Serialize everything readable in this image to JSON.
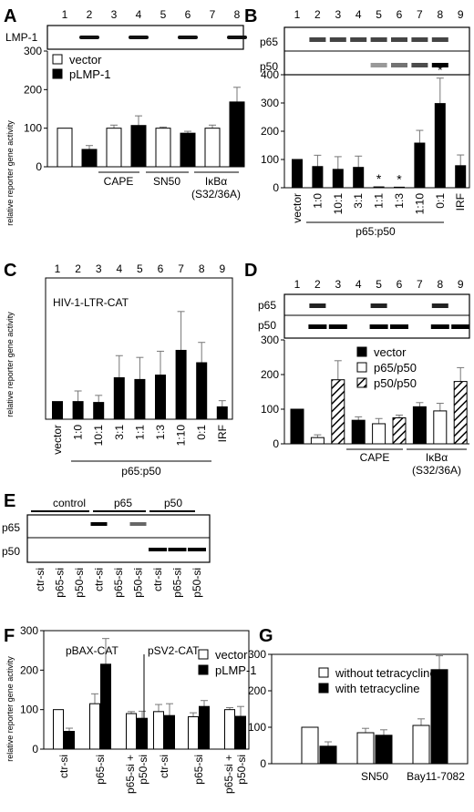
{
  "panels": {
    "A": {
      "letter": "A",
      "lanes": [
        "1",
        "2",
        "3",
        "4",
        "5",
        "6",
        "7",
        "8"
      ],
      "blot_label": "LMP-1",
      "blot_present": [
        false,
        true,
        false,
        true,
        false,
        true,
        false,
        true
      ],
      "legend": [
        "vector",
        "pLMP-1"
      ],
      "groups": [
        "CAPE",
        "SN50",
        "IκBα"
      ],
      "group_sub": "(S32/36A)",
      "chart_data": {
        "type": "bar",
        "ylabel": "relative reporter gene activity",
        "ylim": [
          0,
          300
        ],
        "yticks": [
          0,
          100,
          200,
          300
        ],
        "series": [
          {
            "name": "vector",
            "color": "#ffffff",
            "values": [
              100,
              null,
              100,
              null,
              100,
              null,
              100,
              null
            ],
            "err": [
              0,
              null,
              8,
              null,
              3,
              null,
              8,
              null
            ]
          },
          {
            "name": "pLMP-1",
            "color": "#000000",
            "values": [
              null,
              45,
              null,
              107,
              null,
              87,
              null,
              168
            ],
            "err": [
              null,
              10,
              null,
              25,
              null,
              5,
              null,
              38
            ]
          }
        ]
      }
    },
    "B": {
      "letter": "B",
      "lanes": [
        "1",
        "2",
        "3",
        "4",
        "5",
        "6",
        "7",
        "8",
        "9"
      ],
      "blot_labels": [
        "p65",
        "p50"
      ],
      "x_labels": [
        "vector",
        "1:0",
        "10:1",
        "3:1",
        "1:1",
        "1:3",
        "1:10",
        "0:1",
        "IRF"
      ],
      "group_label": "p65:p50",
      "stars": [
        "*",
        "*",
        "*"
      ],
      "chart_data": {
        "type": "bar",
        "ylim": [
          0,
          400
        ],
        "yticks": [
          0,
          100,
          200,
          300,
          400
        ],
        "values": [
          100,
          75,
          65,
          72,
          3,
          2,
          158,
          298,
          78
        ],
        "err": [
          0,
          40,
          45,
          40,
          0,
          0,
          45,
          90,
          38
        ],
        "significant": [
          false,
          false,
          false,
          false,
          true,
          true,
          false,
          true,
          false
        ]
      }
    },
    "C": {
      "letter": "C",
      "lanes": [
        "1",
        "2",
        "3",
        "4",
        "5",
        "6",
        "7",
        "8",
        "9"
      ],
      "title": "HIV-1-LTR-CAT",
      "x_labels": [
        "vector",
        "1:0",
        "10:1",
        "3:1",
        "1:1",
        "1:3",
        "1:10",
        "0:1",
        "IRF"
      ],
      "group_label": "p65:p50",
      "chart_data": {
        "type": "bar",
        "ylabel": "relative reporter gene activity",
        "ylim": [
          0,
          800
        ],
        "yticks": [
          0,
          200,
          400,
          600,
          800
        ],
        "values": [
          100,
          100,
          95,
          235,
          225,
          250,
          390,
          320,
          70
        ],
        "err": [
          0,
          60,
          40,
          125,
          125,
          135,
          220,
          115,
          35
        ]
      }
    },
    "D": {
      "letter": "D",
      "lanes": [
        "1",
        "2",
        "3",
        "4",
        "5",
        "6",
        "7",
        "8",
        "9"
      ],
      "blot_labels": [
        "p65",
        "p50"
      ],
      "legend": [
        "vector",
        "p65/p50",
        "p50/p50"
      ],
      "groups": [
        "CAPE",
        "IκBα"
      ],
      "group_sub": "(S32/36A)",
      "chart_data": {
        "type": "bar",
        "ylim": [
          0,
          300
        ],
        "yticks": [
          0,
          100,
          200,
          300
        ],
        "values": [
          100,
          18,
          185,
          68,
          58,
          75,
          107,
          95,
          180
        ],
        "err": [
          0,
          8,
          55,
          10,
          15,
          8,
          12,
          22,
          40
        ],
        "series_of_bar": [
          "vector",
          "p65/p50",
          "p50/p50",
          "vector",
          "p65/p50",
          "p50/p50",
          "vector",
          "p65/p50",
          "p50/p50"
        ]
      }
    },
    "E": {
      "letter": "E",
      "groups": [
        "control",
        "p65",
        "p50"
      ],
      "blot_labels": [
        "p65",
        "p50"
      ],
      "x_labels": [
        "ctr-si",
        "p65-si",
        "p50-si",
        "ctr-si",
        "p65-si",
        "p50-si",
        "ctr-si",
        "p65-si",
        "p50-si"
      ]
    },
    "F": {
      "letter": "F",
      "sub_titles": [
        "pBAX-CAT",
        "pSV2-CAT"
      ],
      "legend": [
        "vector",
        "pLMP-1"
      ],
      "x_labels": [
        "ctr-si",
        "p65-si",
        "p65-si +\np50-si",
        "ctr-si",
        "p65-si",
        "p65-si +\np50-si"
      ],
      "chart_data": {
        "type": "bar",
        "ylabel": "relative reporter gene activity",
        "ylim": [
          0,
          300
        ],
        "yticks": [
          0,
          100,
          200,
          300
        ],
        "series": [
          {
            "name": "vector",
            "values": [
              100,
              115,
              90,
              95,
              82,
              100
            ],
            "err": [
              0,
              25,
              5,
              18,
              10,
              5
            ]
          },
          {
            "name": "pLMP-1",
            "values": [
              45,
              215,
              78,
              85,
              108,
              83
            ],
            "err": [
              8,
              65,
              18,
              30,
              15,
              25
            ]
          }
        ]
      }
    },
    "G": {
      "letter": "G",
      "legend": [
        "without tetracycline",
        "with tetracycline"
      ],
      "x_labels": [
        "",
        "SN50",
        "Bay11-7082"
      ],
      "chart_data": {
        "type": "bar",
        "ylim": [
          0,
          300
        ],
        "yticks": [
          0,
          100,
          200,
          300
        ],
        "series": [
          {
            "name": "without tetracycline",
            "values": [
              100,
              85,
              105
            ],
            "err": [
              0,
              12,
              18
            ]
          },
          {
            "name": "with tetracycline",
            "values": [
              48,
              78,
              258
            ],
            "err": [
              12,
              15,
              38
            ]
          }
        ]
      }
    }
  }
}
